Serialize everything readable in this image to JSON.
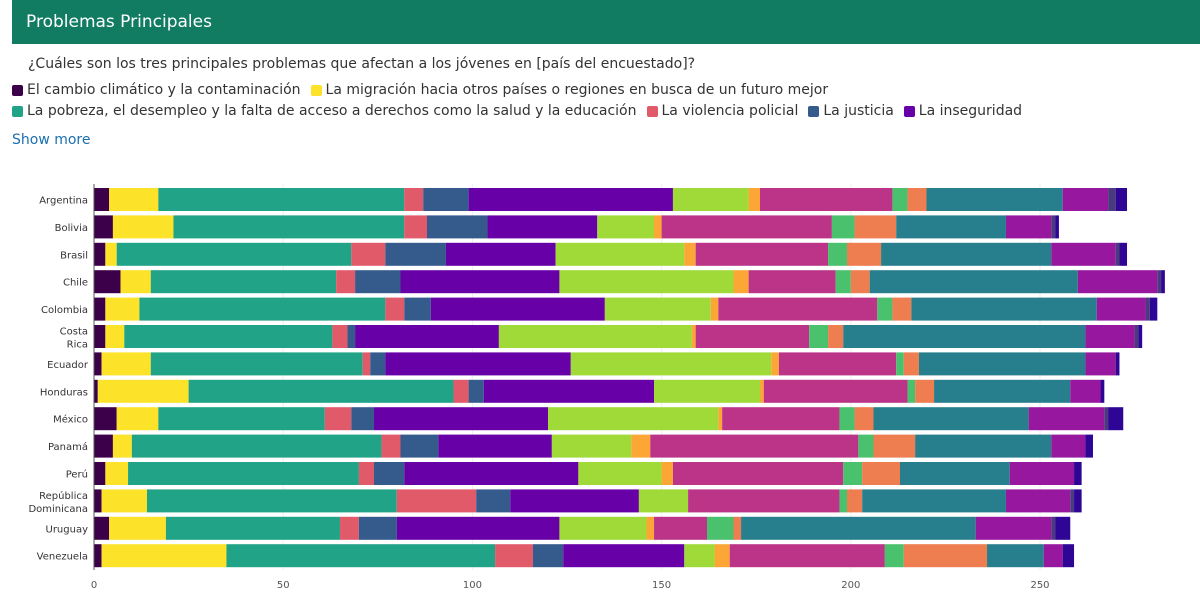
{
  "header": {
    "title": "Problemas Principales"
  },
  "question": "¿Cuáles son los tres principales problemas que afectan a los jóvenes en [país del encuestado]?",
  "show_more": "Show more",
  "chart_data": {
    "type": "bar",
    "orientation": "horizontal",
    "stacked": true,
    "title": "",
    "xlabel": "",
    "ylabel": "",
    "xlim": [
      0,
      292
    ],
    "xticks": [
      0,
      50,
      100,
      150,
      200,
      250
    ],
    "grid": true,
    "legend_position": "top",
    "categories": [
      "Argentina",
      "Bolivia",
      "Brasil",
      "Chile",
      "Colombia",
      "Costa Rica",
      "Ecuador",
      "Honduras",
      "México",
      "Panamá",
      "Perú",
      "República Dominicana",
      "Uruguay",
      "Venezuela"
    ],
    "series": [
      {
        "name": "El cambio climático y la contaminación",
        "color": "#3b0049",
        "values": [
          4,
          5,
          3,
          7,
          3,
          3,
          2,
          1,
          6,
          5,
          3,
          2,
          4,
          2
        ]
      },
      {
        "name": "La migración hacia otros países o regiones en busca de un futuro mejor",
        "color": "#fde22a",
        "values": [
          13,
          16,
          3,
          8,
          9,
          5,
          13,
          24,
          11,
          5,
          6,
          12,
          15,
          33
        ]
      },
      {
        "name": "La pobreza, el desempleo y la falta de acceso a derechos como la salud y la educación",
        "color": "#20a386",
        "values": [
          65,
          61,
          62,
          49,
          65,
          55,
          56,
          70,
          44,
          66,
          61,
          66,
          46,
          71
        ]
      },
      {
        "name": "La violencia policial",
        "color": "#e05a6a",
        "values": [
          5,
          6,
          9,
          5,
          5,
          4,
          2,
          4,
          7,
          5,
          4,
          21,
          5,
          10
        ]
      },
      {
        "name": "La justicia",
        "color": "#355a8c",
        "values": [
          12,
          16,
          16,
          12,
          7,
          2,
          4,
          4,
          6,
          10,
          8,
          9,
          10,
          8
        ]
      },
      {
        "name": "La inseguridad",
        "color": "#6800a8",
        "values": [
          54,
          29,
          29,
          42,
          46,
          38,
          49,
          45,
          46,
          30,
          46,
          34,
          43,
          32
        ]
      },
      {
        "color": "#a0da39",
        "values": [
          20,
          15,
          34,
          46,
          28,
          51,
          53,
          28,
          45,
          21,
          22,
          13,
          23,
          8
        ]
      },
      {
        "color": "#fca636",
        "values": [
          3,
          2,
          3,
          4,
          2,
          1,
          2,
          1,
          1,
          5,
          3,
          0,
          2,
          4
        ]
      },
      {
        "color": "#bb3488",
        "values": [
          35,
          45,
          35,
          23,
          42,
          30,
          31,
          38,
          31,
          55,
          45,
          40,
          14,
          41
        ]
      },
      {
        "color": "#4ac16d",
        "values": [
          4,
          6,
          5,
          4,
          4,
          5,
          2,
          2,
          4,
          4,
          5,
          2,
          7,
          5
        ]
      },
      {
        "color": "#ee7d4f",
        "values": [
          5,
          11,
          9,
          5,
          5,
          4,
          4,
          5,
          5,
          11,
          10,
          4,
          2,
          22
        ]
      },
      {
        "color": "#277f8e",
        "values": [
          36,
          29,
          45,
          55,
          49,
          64,
          44,
          36,
          41,
          36,
          29,
          38,
          62,
          15
        ]
      },
      {
        "color": "#97179e",
        "values": [
          12,
          12,
          17,
          21,
          13,
          13,
          8,
          8,
          20,
          9,
          17,
          17,
          20,
          5
        ]
      },
      {
        "color": "#4a3a7e",
        "values": [
          2,
          1,
          1,
          1,
          1,
          1,
          0,
          0,
          1,
          0,
          0,
          1,
          1,
          0
        ]
      },
      {
        "color": "#2f0596",
        "values": [
          3,
          1,
          2,
          1,
          2,
          1,
          1,
          1,
          4,
          2,
          2,
          2,
          4,
          3
        ]
      }
    ]
  }
}
